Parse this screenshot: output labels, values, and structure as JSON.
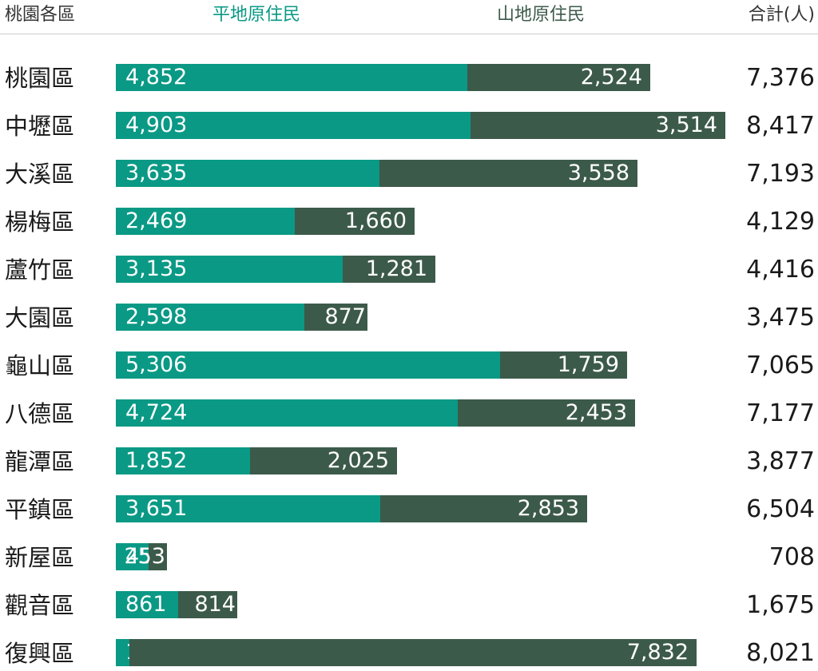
{
  "header": {
    "district": "桃園各區",
    "plains": "平地原住民",
    "mountain": "山地原住民",
    "total": "合計(人)"
  },
  "colors": {
    "plains": "#0a9985",
    "mountain": "#3c5a4a",
    "label": "#ffffff",
    "header_rule": "#cccccc"
  },
  "chart_data": {
    "type": "bar",
    "orientation": "horizontal",
    "stacked": true,
    "categories": [
      "桃園區",
      "中壢區",
      "大溪區",
      "楊梅區",
      "蘆竹區",
      "大園區",
      "龜山區",
      "八德區",
      "龍潭區",
      "平鎮區",
      "新屋區",
      "觀音區",
      "復興區"
    ],
    "series": [
      {
        "name": "平地原住民",
        "values": [
          4852,
          4903,
          3635,
          2469,
          3135,
          2598,
          5306,
          4724,
          1852,
          3651,
          455,
          861,
          189
        ]
      },
      {
        "name": "山地原住民",
        "values": [
          2524,
          3514,
          3558,
          1660,
          1281,
          877,
          1759,
          2453,
          2025,
          2853,
          253,
          814,
          7832
        ]
      }
    ],
    "segment_labels": {
      "plains": [
        "4,852",
        "4,903",
        "3,635",
        "2,469",
        "3,135",
        "2,598",
        "5,306",
        "4,724",
        "1,852",
        "3,651",
        "455",
        "861",
        "189"
      ],
      "mountain": [
        "2,524",
        "3,514",
        "3,558",
        "1,660",
        "1,281",
        "877",
        "1,759",
        "2,453",
        "2,025",
        "2,853",
        "253",
        "814",
        "7,832"
      ]
    },
    "totals": [
      "7,376",
      "8,417",
      "7,193",
      "4,129",
      "4,416",
      "3,475",
      "7,065",
      "7,177",
      "3,877",
      "6,504",
      "708",
      "1,675",
      "8,021"
    ],
    "xlim": [
      0,
      8417
    ]
  }
}
